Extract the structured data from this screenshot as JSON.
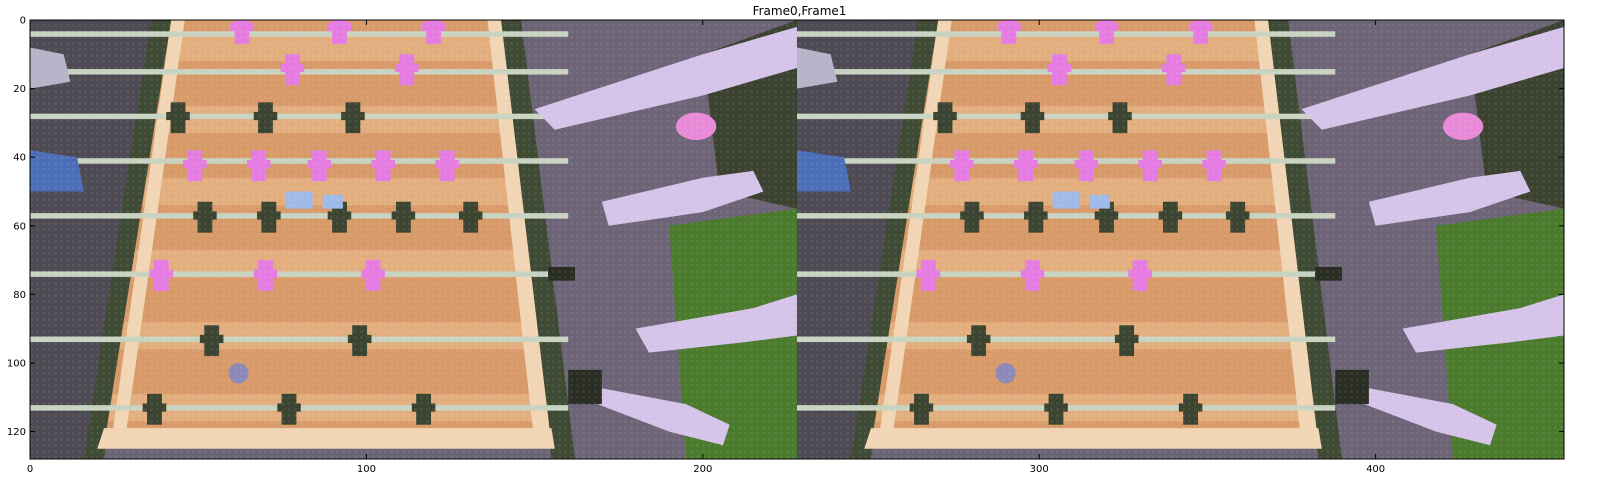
{
  "figure": {
    "title": "Frame0,Frame1"
  },
  "axes": {
    "x_ticks": [
      {
        "value": 0,
        "label": "0"
      },
      {
        "value": 100,
        "label": "100"
      },
      {
        "value": 200,
        "label": "200"
      },
      {
        "value": 300,
        "label": "300"
      },
      {
        "value": 400,
        "label": "400"
      }
    ],
    "y_ticks": [
      {
        "value": 0,
        "label": "0"
      },
      {
        "value": 20,
        "label": "20"
      },
      {
        "value": 40,
        "label": "40"
      },
      {
        "value": 60,
        "label": "60"
      },
      {
        "value": 80,
        "label": "80"
      },
      {
        "value": 100,
        "label": "100"
      },
      {
        "value": 120,
        "label": "120"
      }
    ],
    "x_range": [
      0,
      456
    ],
    "y_range": [
      0,
      128
    ]
  },
  "image": {
    "description_free": true,
    "frames": 2,
    "frame_width": 228,
    "palette": {
      "table": "#d89a68",
      "table_light": "#f1d5b4",
      "rail": "#3f4a34",
      "rod": "#c9d3c1",
      "pink": "#e67be2",
      "dark_man": "#3b4430",
      "floor": "#6b6474",
      "arm": "#d6c3ea",
      "green": "#4a7a2c",
      "dark": "#2a2d23"
    }
  }
}
